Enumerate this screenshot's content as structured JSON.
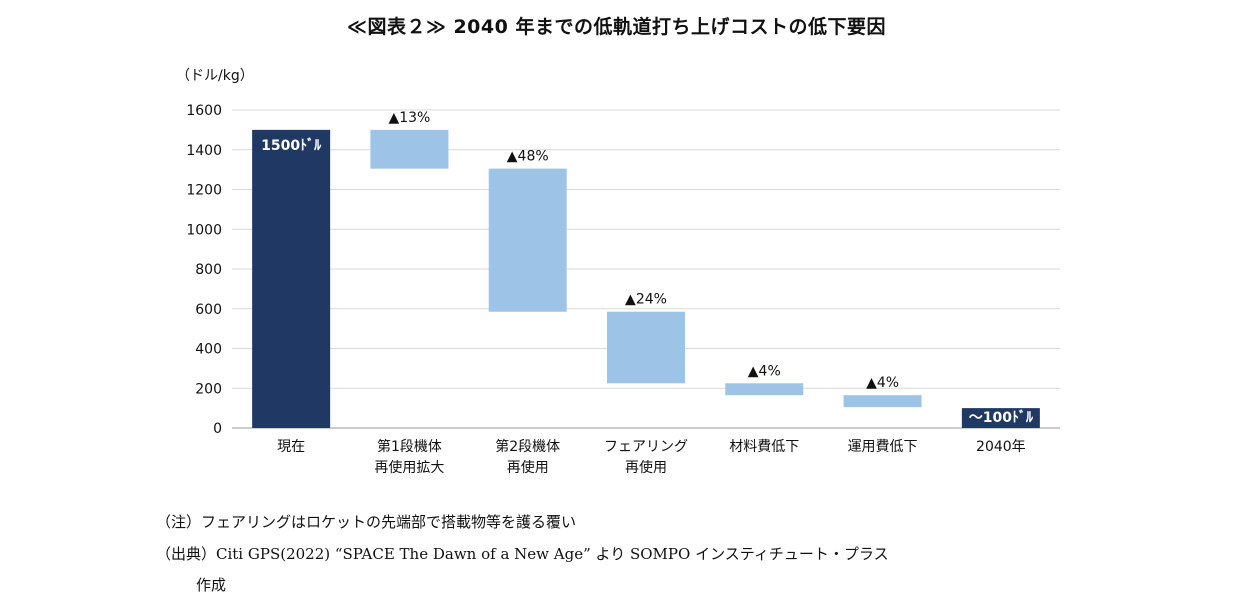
{
  "title": "≪図表２≫ 2040 年までの低軌道打ち上げコストの低下要因",
  "chart_data": {
    "type": "bar",
    "subtype": "waterfall",
    "title": "≪図表２≫ 2040 年までの低軌道打ち上げコストの低下要因",
    "ylabel": "（ドル/kg）",
    "ylim": [
      0,
      1600
    ],
    "yticks": [
      0,
      200,
      400,
      600,
      800,
      1000,
      1200,
      1400,
      1600
    ],
    "grid": true,
    "categories": [
      [
        "現在"
      ],
      [
        "第1段機体",
        "再使用拡大"
      ],
      [
        "第2段機体",
        "再使用"
      ],
      [
        "フェアリング",
        "再使用"
      ],
      [
        "材料費低下"
      ],
      [
        "運用費低下"
      ],
      [
        "2040年"
      ]
    ],
    "bars": [
      {
        "kind": "total",
        "bottom": 0,
        "top": 1500,
        "label": "1500ﾄﾞﾙ",
        "color": "#1f3864"
      },
      {
        "kind": "decrease",
        "bottom": 1305,
        "top": 1500,
        "label": "▲13%",
        "color": "#9dc3e6"
      },
      {
        "kind": "decrease",
        "bottom": 585,
        "top": 1305,
        "label": "▲48%",
        "color": "#9dc3e6"
      },
      {
        "kind": "decrease",
        "bottom": 225,
        "top": 585,
        "label": "▲24%",
        "color": "#9dc3e6"
      },
      {
        "kind": "decrease",
        "bottom": 165,
        "top": 225,
        "label": "▲4%",
        "color": "#9dc3e6"
      },
      {
        "kind": "decrease",
        "bottom": 105,
        "top": 165,
        "label": "▲4%",
        "color": "#9dc3e6"
      },
      {
        "kind": "total",
        "bottom": 0,
        "top": 100,
        "label": "～100ﾄﾞﾙ",
        "color": "#1f3864"
      }
    ]
  },
  "notes": {
    "note1": "（注）フェアリングはロケットの先端部で搭載物等を護る覆い",
    "source_line1": "（出典）Citi GPS(2022) “SPACE The Dawn of a New Age” より SOMPO インスティチュート・プラス",
    "source_line2": "作成"
  }
}
